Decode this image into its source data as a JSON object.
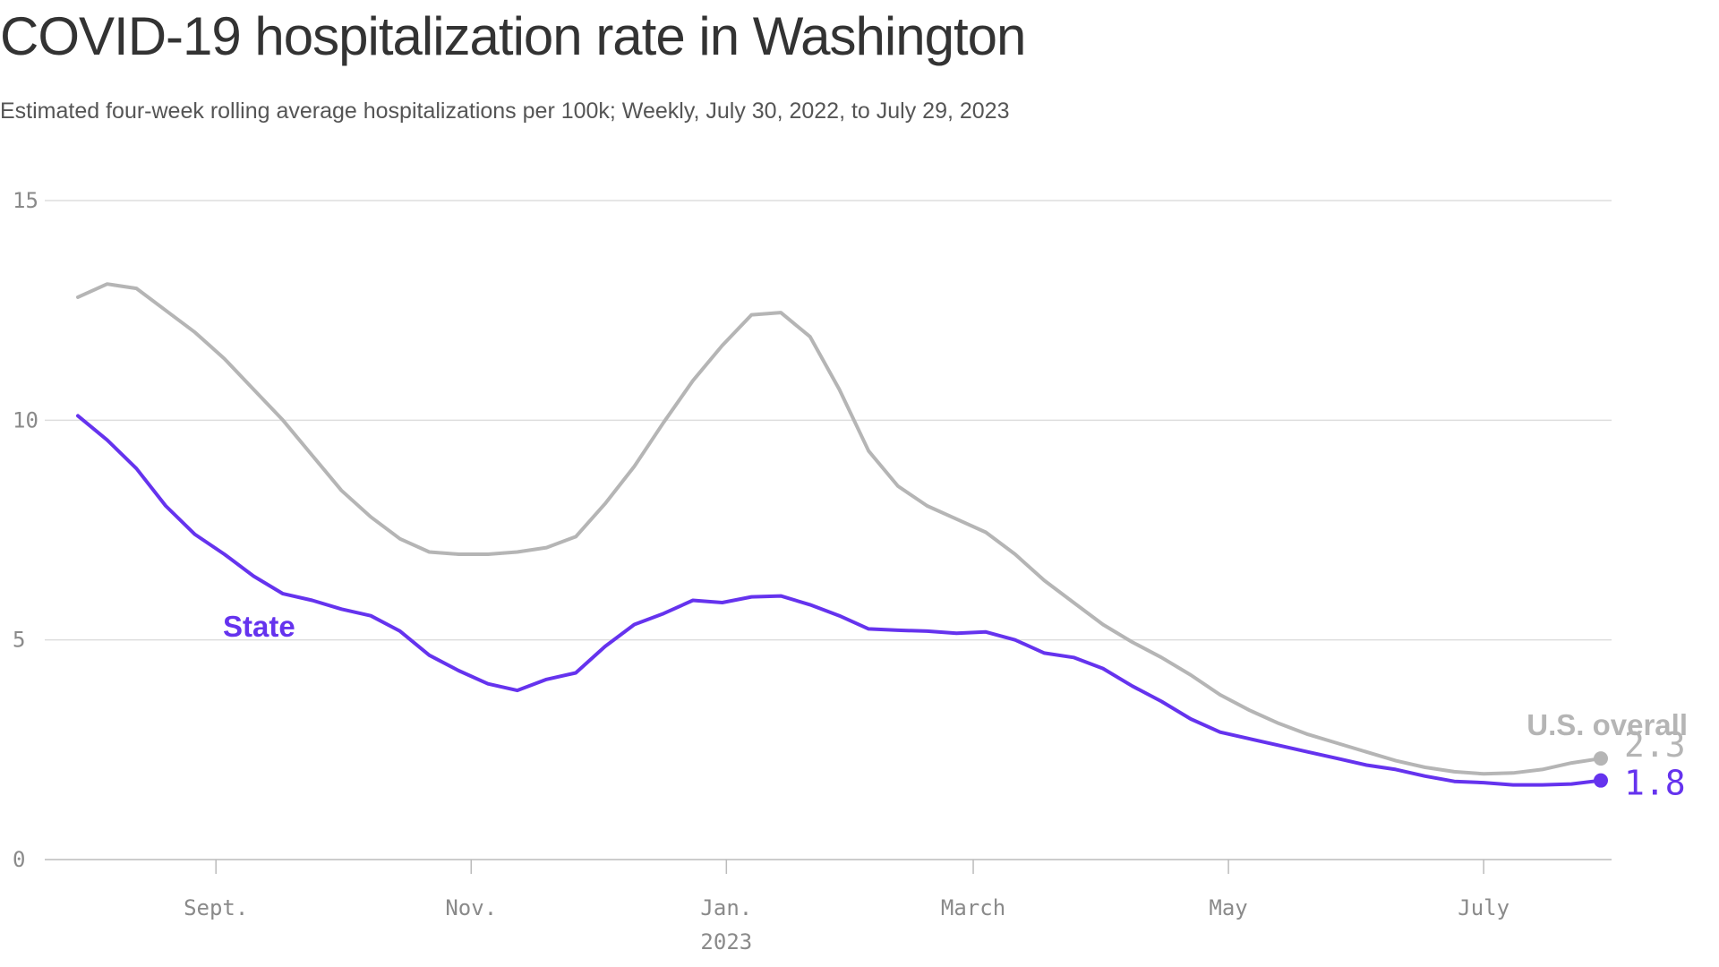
{
  "chart_data": {
    "type": "line",
    "title": "COVID-19 hospitalization rate in Washington",
    "subtitle": "Estimated four-week rolling average hospitalizations per 100k; Weekly, July 30, 2022, to July 29, 2023",
    "xlabel": "",
    "ylabel": "",
    "ylim": [
      0,
      15
    ],
    "yticks": [
      0,
      5,
      10,
      15
    ],
    "x": [
      "2022-07-30",
      "2022-08-06",
      "2022-08-13",
      "2022-08-20",
      "2022-08-27",
      "2022-09-03",
      "2022-09-10",
      "2022-09-17",
      "2022-09-24",
      "2022-10-01",
      "2022-10-08",
      "2022-10-15",
      "2022-10-22",
      "2022-10-29",
      "2022-11-05",
      "2022-11-12",
      "2022-11-19",
      "2022-11-26",
      "2022-12-03",
      "2022-12-10",
      "2022-12-17",
      "2022-12-24",
      "2022-12-31",
      "2023-01-07",
      "2023-01-14",
      "2023-01-21",
      "2023-01-28",
      "2023-02-04",
      "2023-02-11",
      "2023-02-18",
      "2023-02-25",
      "2023-03-04",
      "2023-03-11",
      "2023-03-18",
      "2023-03-25",
      "2023-04-01",
      "2023-04-08",
      "2023-04-15",
      "2023-04-22",
      "2023-04-29",
      "2023-05-06",
      "2023-05-13",
      "2023-05-20",
      "2023-05-27",
      "2023-06-03",
      "2023-06-10",
      "2023-06-17",
      "2023-06-24",
      "2023-07-01",
      "2023-07-08",
      "2023-07-15",
      "2023-07-22",
      "2023-07-29"
    ],
    "x_ticks": [
      {
        "date": "2022-09-01",
        "label": "Sept."
      },
      {
        "date": "2022-11-01",
        "label": "Nov."
      },
      {
        "date": "2023-01-01",
        "label": "Jan."
      },
      {
        "date": "2023-03-01",
        "label": "March"
      },
      {
        "date": "2023-05-01",
        "label": "May"
      },
      {
        "date": "2023-07-01",
        "label": "July"
      }
    ],
    "year_label": {
      "date": "2023-01-01",
      "label": "2023"
    },
    "series": [
      {
        "name": "U.S. overall",
        "color": "#b5b5b5",
        "end_label": "2.3",
        "values": [
          12.8,
          13.1,
          13.0,
          12.5,
          12.0,
          11.4,
          10.7,
          10.0,
          9.2,
          8.4,
          7.8,
          7.3,
          7.0,
          6.95,
          6.95,
          7.0,
          7.1,
          7.35,
          8.1,
          8.95,
          9.95,
          10.9,
          11.7,
          12.4,
          12.45,
          11.9,
          10.7,
          9.3,
          8.5,
          8.05,
          7.75,
          7.45,
          6.95,
          6.35,
          5.85,
          5.35,
          4.95,
          4.6,
          4.2,
          3.75,
          3.4,
          3.1,
          2.85,
          2.65,
          2.45,
          2.25,
          2.1,
          2.0,
          1.95,
          1.97,
          2.05,
          2.2,
          2.3
        ]
      },
      {
        "name": "State",
        "color": "#6533ee",
        "end_label": "1.8",
        "values": [
          10.1,
          9.55,
          8.9,
          8.05,
          7.4,
          6.95,
          6.45,
          6.05,
          5.9,
          5.7,
          5.55,
          5.2,
          4.65,
          4.3,
          4.0,
          3.85,
          4.1,
          4.25,
          4.85,
          5.35,
          5.6,
          5.9,
          5.85,
          5.98,
          6.0,
          5.8,
          5.55,
          5.25,
          5.22,
          5.2,
          5.15,
          5.18,
          5.0,
          4.7,
          4.6,
          4.35,
          3.95,
          3.6,
          3.2,
          2.9,
          2.75,
          2.6,
          2.45,
          2.3,
          2.15,
          2.05,
          1.9,
          1.78,
          1.75,
          1.7,
          1.7,
          1.72,
          1.8
        ]
      }
    ]
  }
}
